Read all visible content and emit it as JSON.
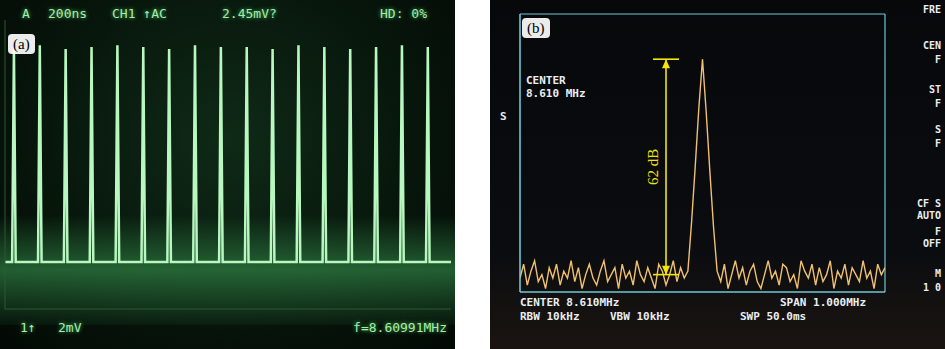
{
  "chart_data": [
    {
      "type": "line",
      "panel_label": "(a)",
      "header": [
        "A",
        "200ns",
        "CH1 ↑AC",
        "2.45mV?",
        "HD: 0%"
      ],
      "footer": [
        "1↑",
        "2mV",
        "f=8.60991MHz"
      ],
      "color": "#b8f8c0",
      "xlim": [
        0,
        2000
      ],
      "ylim": [
        0,
        16
      ],
      "tick_labels": false,
      "grid": false,
      "x": [
        0,
        32,
        40,
        48,
        148,
        156,
        164,
        264,
        272,
        280,
        380,
        388,
        396,
        496,
        504,
        512,
        612,
        620,
        628,
        728,
        736,
        744,
        844,
        852,
        860,
        960,
        968,
        976,
        1076,
        1084,
        1092,
        1192,
        1200,
        1208,
        1308,
        1316,
        1324,
        1424,
        1432,
        1440,
        1540,
        1548,
        1556,
        1656,
        1664,
        1672,
        1772,
        1780,
        1788,
        1888,
        1896,
        1904,
        2000
      ],
      "values": [
        2.6,
        2.6,
        14.5,
        2.6,
        2.6,
        14.6,
        2.6,
        2.6,
        14.4,
        2.6,
        2.6,
        14.5,
        2.6,
        2.6,
        14.6,
        2.6,
        2.6,
        14.5,
        2.6,
        2.6,
        14.4,
        2.6,
        2.6,
        14.6,
        2.6,
        2.6,
        14.5,
        2.6,
        2.6,
        14.5,
        2.6,
        2.6,
        14.4,
        2.6,
        2.6,
        14.6,
        2.6,
        2.6,
        14.5,
        2.6,
        2.6,
        14.4,
        2.6,
        2.6,
        14.5,
        2.6,
        2.6,
        14.6,
        2.6,
        2.6,
        14.5,
        2.6,
        2.6
      ]
    },
    {
      "type": "line",
      "panel_label": "(b)",
      "center_label": [
        "CENTER",
        "8.610 MHz"
      ],
      "side_labels": [
        "S"
      ],
      "menu": [
        "FRE",
        "CEN",
        "F",
        "ST",
        "F",
        "S",
        "F",
        "CF S",
        "AUTO",
        "F",
        "OFF",
        "M",
        "1 0"
      ],
      "footer": [
        "CENTER 8.610MHz",
        "SPAN 1.000MHz",
        "RBW 10kHz",
        "VBW 10kHz",
        "SWP 50.0ms"
      ],
      "annotations": [
        {
          "text": "62 dB",
          "from": -75,
          "to": -13
        }
      ],
      "color": "#f0c070",
      "xlim": [
        8.11,
        9.11
      ],
      "xticks": [
        8.11,
        8.21,
        8.31,
        8.41,
        8.51,
        8.61,
        8.71,
        8.81,
        8.91,
        9.01,
        9.11
      ],
      "ylim": [
        -80,
        0
      ],
      "yticks": [
        -80,
        -70,
        -60,
        -50,
        -40,
        -30,
        -20,
        -10,
        0
      ],
      "grid": true,
      "tick_labels": false,
      "x": [
        8.11,
        8.12,
        8.13,
        8.14,
        8.15,
        8.16,
        8.17,
        8.18,
        8.19,
        8.2,
        8.21,
        8.22,
        8.23,
        8.24,
        8.25,
        8.26,
        8.27,
        8.28,
        8.29,
        8.3,
        8.31,
        8.32,
        8.33,
        8.34,
        8.35,
        8.36,
        8.37,
        8.38,
        8.39,
        8.4,
        8.41,
        8.42,
        8.43,
        8.44,
        8.45,
        8.46,
        8.47,
        8.48,
        8.49,
        8.5,
        8.51,
        8.52,
        8.53,
        8.54,
        8.55,
        8.56,
        8.57,
        8.58,
        8.59,
        8.6,
        8.61,
        8.62,
        8.63,
        8.64,
        8.65,
        8.66,
        8.67,
        8.68,
        8.69,
        8.7,
        8.71,
        8.72,
        8.73,
        8.74,
        8.75,
        8.76,
        8.77,
        8.78,
        8.79,
        8.8,
        8.81,
        8.82,
        8.83,
        8.84,
        8.85,
        8.86,
        8.87,
        8.88,
        8.89,
        8.9,
        8.91,
        8.92,
        8.93,
        8.94,
        8.95,
        8.96,
        8.97,
        8.98,
        8.99,
        9.0,
        9.01,
        9.02,
        9.03,
        9.04,
        9.05,
        9.06,
        9.07,
        9.08,
        9.09,
        9.1,
        9.11
      ],
      "values": [
        -76,
        -72,
        -78,
        -74,
        -71,
        -77,
        -75,
        -79,
        -73,
        -76,
        -72,
        -78,
        -74,
        -76,
        -71,
        -77,
        -73,
        -79,
        -75,
        -72,
        -76,
        -78,
        -74,
        -71,
        -77,
        -75,
        -73,
        -79,
        -72,
        -76,
        -74,
        -78,
        -71,
        -75,
        -77,
        -73,
        -76,
        -79,
        -72,
        -74,
        -78,
        -75,
        -71,
        -77,
        -73,
        -76,
        -74,
        -60,
        -44,
        -27,
        -13,
        -28,
        -45,
        -61,
        -74,
        -77,
        -72,
        -79,
        -75,
        -71,
        -76,
        -73,
        -78,
        -74,
        -72,
        -77,
        -79,
        -75,
        -71,
        -76,
        -74,
        -78,
        -72,
        -73,
        -77,
        -75,
        -79,
        -71,
        -74,
        -76,
        -72,
        -78,
        -73,
        -77,
        -75,
        -71,
        -79,
        -74,
        -76,
        -72,
        -78,
        -73,
        -75,
        -77,
        -71,
        -76,
        -74,
        -79,
        -72,
        -75,
        -73
      ]
    }
  ]
}
